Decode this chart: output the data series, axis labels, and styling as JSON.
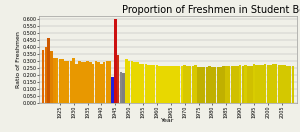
{
  "title": "Proportion of Freshmen in Student Body",
  "xlabel": "Year",
  "ylabel": "Ratio of Freshmen",
  "years": [
    1919,
    1920,
    1921,
    1922,
    1923,
    1924,
    1925,
    1926,
    1927,
    1928,
    1929,
    1930,
    1931,
    1932,
    1933,
    1934,
    1935,
    1936,
    1937,
    1938,
    1939,
    1940,
    1941,
    1942,
    1943,
    1944,
    1945,
    1946,
    1947,
    1948,
    1949,
    1950,
    1951,
    1952,
    1953,
    1954,
    1955,
    1956,
    1957,
    1958,
    1959,
    1960,
    1961,
    1962,
    1963,
    1964,
    1965,
    1966,
    1967,
    1968,
    1969,
    1970,
    1971,
    1972,
    1973,
    1974,
    1975,
    1976,
    1977,
    1978,
    1979,
    1980,
    1981,
    1982,
    1983,
    1984,
    1985,
    1986,
    1987,
    1988,
    1989,
    1990,
    1991,
    1992,
    1993,
    1994,
    1995,
    1996,
    1997,
    1998,
    1999,
    2000,
    2001,
    2002,
    2003,
    2004,
    2005,
    2006,
    2007,
    2008,
    2009
  ],
  "values": [
    0.38,
    0.4,
    0.46,
    0.37,
    0.32,
    0.32,
    0.31,
    0.31,
    0.3,
    0.3,
    0.3,
    0.32,
    0.28,
    0.3,
    0.29,
    0.29,
    0.3,
    0.29,
    0.28,
    0.3,
    0.29,
    0.28,
    0.29,
    0.3,
    0.3,
    0.185,
    0.6,
    0.34,
    0.22,
    0.215,
    0.31,
    0.3,
    0.3,
    0.295,
    0.29,
    0.28,
    0.28,
    0.275,
    0.27,
    0.27,
    0.27,
    0.27,
    0.26,
    0.26,
    0.26,
    0.265,
    0.265,
    0.265,
    0.265,
    0.265,
    0.265,
    0.27,
    0.265,
    0.265,
    0.265,
    0.27,
    0.255,
    0.255,
    0.255,
    0.255,
    0.26,
    0.255,
    0.255,
    0.255,
    0.255,
    0.26,
    0.265,
    0.265,
    0.265,
    0.265,
    0.265,
    0.27,
    0.265,
    0.27,
    0.265,
    0.265,
    0.28,
    0.27,
    0.27,
    0.27,
    0.275,
    0.27,
    0.27,
    0.275,
    0.275,
    0.27,
    0.27,
    0.27,
    0.265,
    0.265,
    0.265
  ],
  "colors": [
    "#e06800",
    "#e07000",
    "#cc5800",
    "#e08000",
    "#e89000",
    "#e89800",
    "#e89800",
    "#e89800",
    "#e89800",
    "#e89800",
    "#e89800",
    "#e89800",
    "#e89800",
    "#e89800",
    "#e89800",
    "#e89800",
    "#e89800",
    "#e89800",
    "#e89800",
    "#e89800",
    "#e89800",
    "#e89800",
    "#e89800",
    "#e89800",
    "#e89800",
    "#2020dd",
    "#cc1010",
    "#cc3010",
    "#888888",
    "#808080",
    "#e8d800",
    "#e8d800",
    "#e8d800",
    "#e8d800",
    "#e8d800",
    "#e8d800",
    "#e8d800",
    "#e8d800",
    "#e8d800",
    "#e8d800",
    "#e8d800",
    "#e8d800",
    "#e8d800",
    "#e8d800",
    "#e8d800",
    "#e8d800",
    "#e8d800",
    "#e8d800",
    "#e8d800",
    "#e8d800",
    "#e8d800",
    "#d8c800",
    "#d8c800",
    "#d8c800",
    "#d8c800",
    "#d8c800",
    "#c0b000",
    "#c0b000",
    "#c0b000",
    "#c0b000",
    "#c0b000",
    "#c0b000",
    "#c0b000",
    "#c0b000",
    "#c0b000",
    "#c0b000",
    "#d0c000",
    "#d0c000",
    "#d0c000",
    "#d0c000",
    "#d0c000",
    "#d8cc00",
    "#d0c000",
    "#d8cc00",
    "#d0c000",
    "#d0c000",
    "#d8cc00",
    "#d4c800",
    "#d4c800",
    "#d4c800",
    "#d4c800",
    "#d4c800",
    "#d4c800",
    "#d4c800",
    "#d4c800",
    "#d4c800",
    "#d4c800",
    "#d4c800",
    "#d4c800",
    "#d4c800",
    "#d4c800",
    "#d4c800"
  ],
  "ylim": [
    0,
    0.62
  ],
  "yticks": [
    0.0,
    0.05,
    0.1,
    0.15,
    0.2,
    0.25,
    0.3,
    0.35,
    0.4,
    0.45,
    0.5,
    0.55,
    0.6
  ],
  "xtick_years": [
    1925,
    1930,
    1935,
    1940,
    1945,
    1950,
    1955,
    1960,
    1965,
    1970,
    1975,
    1980,
    1985,
    1990,
    1995,
    2000,
    2005
  ],
  "xlim": [
    1917.5,
    2010.5
  ],
  "bg_color": "#f0f0e8",
  "title_fontsize": 7,
  "axis_label_fontsize": 4.5,
  "tick_fontsize": 3.5
}
